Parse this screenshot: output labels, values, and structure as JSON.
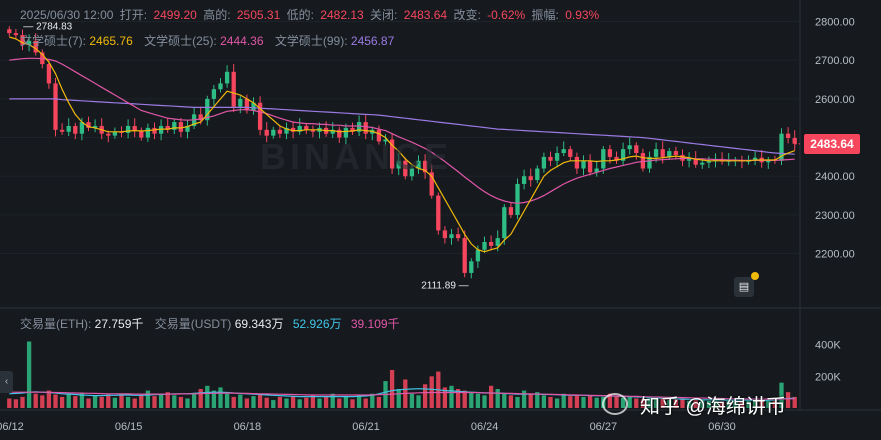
{
  "header": {
    "datetime": "2025/06/30 12:00",
    "open_label": "打开:",
    "open_value": "2499.20",
    "high_label": "高的:",
    "high_value": "2505.31",
    "low_label": "低的:",
    "low_value": "2482.13",
    "close_label": "关闭:",
    "close_value": "2483.64",
    "change_label": "改变:",
    "change_value": "-0.62%",
    "amplitude_label": "振幅:",
    "amplitude_value": "0.93%"
  },
  "ma": [
    {
      "label": "文学硕士(7):",
      "value": "2465.76",
      "color": "#f0b90b"
    },
    {
      "label": "文学硕士(25):",
      "value": "2444.36",
      "color": "#e056a8"
    },
    {
      "label": "文学硕士(99):",
      "value": "2456.87",
      "color": "#9c7ae5"
    }
  ],
  "volume_header": {
    "label1": "交易量(ETH):",
    "value1": "27.759千",
    "label2": "交易量(USDT)",
    "value2": "69.343万",
    "value3": "52.926万",
    "value4": "39.109千"
  },
  "current_price": "2483.64",
  "toggle_glyph": "‹",
  "note_glyph": "▤",
  "watermark_text": "知乎 @海绵讲币",
  "brand_watermark": "BINANCE",
  "colors": {
    "up": "#2ebd85",
    "down": "#f6465d",
    "ma7": "#f0b90b",
    "ma25": "#e056a8",
    "ma99": "#9c7ae5",
    "vol_ma1": "#41c6e8",
    "vol_ma2": "#e056a8"
  },
  "chart_data": {
    "type": "candlestick",
    "interval": "4h",
    "price_axis": {
      "ticks": [
        2200,
        2300,
        2400,
        2500,
        2600,
        2700,
        2800
      ],
      "tick_labels": [
        "2200.00",
        "2300.00",
        "2400.00",
        "2500.00",
        "2600.00",
        "2700.00",
        "2800.00"
      ],
      "range": [
        2080,
        2835
      ]
    },
    "volume_axis": {
      "ticks": [
        200,
        400
      ],
      "tick_labels": [
        "200K",
        "400K"
      ],
      "range": [
        0,
        480
      ],
      "unit": "K"
    },
    "date_ticks": [
      "06/12",
      "06/15",
      "06/18",
      "06/21",
      "06/24",
      "06/27",
      "06/30"
    ],
    "annotations": [
      {
        "label": "2784.83",
        "type": "max"
      },
      {
        "label": "2111.89",
        "type": "min"
      }
    ],
    "closes": [
      2770,
      2765,
      2740,
      2750,
      2720,
      2690,
      2640,
      2520,
      2515,
      2530,
      2510,
      2540,
      2525,
      2530,
      2510,
      2505,
      2515,
      2512,
      2530,
      2518,
      2500,
      2525,
      2510,
      2530,
      2520,
      2540,
      2515,
      2530,
      2560,
      2545,
      2600,
      2625,
      2640,
      2670,
      2580,
      2600,
      2570,
      2590,
      2520,
      2505,
      2520,
      2510,
      2525,
      2515,
      2530,
      2520,
      2515,
      2525,
      2510,
      2520,
      2500,
      2525,
      2515,
      2540,
      2510,
      2520,
      2490,
      2495,
      2420,
      2440,
      2400,
      2420,
      2440,
      2410,
      2350,
      2260,
      2240,
      2250,
      2240,
      2150,
      2180,
      2210,
      2230,
      2220,
      2240,
      2320,
      2300,
      2380,
      2400,
      2390,
      2420,
      2450,
      2440,
      2460,
      2470,
      2450,
      2420,
      2440,
      2410,
      2420,
      2470,
      2450,
      2440,
      2470,
      2480,
      2460,
      2420,
      2450,
      2470,
      2450,
      2465,
      2455,
      2440,
      2445,
      2430,
      2435,
      2440,
      2445,
      2438,
      2440,
      2442,
      2438,
      2440,
      2448,
      2436,
      2442,
      2440,
      2510,
      2499,
      2484
    ],
    "volumes_k": [
      60,
      55,
      70,
      420,
      90,
      80,
      110,
      85,
      70,
      90,
      75,
      95,
      60,
      80,
      70,
      85,
      65,
      90,
      70,
      60,
      80,
      110,
      75,
      90,
      100,
      80,
      70,
      60,
      95,
      120,
      140,
      110,
      130,
      90,
      70,
      85,
      60,
      75,
      90,
      65,
      50,
      70,
      60,
      75,
      55,
      65,
      80,
      60,
      70,
      90,
      60,
      75,
      55,
      80,
      60,
      90,
      70,
      170,
      240,
      120,
      180,
      90,
      80,
      150,
      200,
      230,
      130,
      140,
      120,
      110,
      100,
      90,
      80,
      140,
      120,
      90,
      80,
      70,
      110,
      90,
      100,
      80,
      70,
      60,
      90,
      75,
      85,
      70,
      80,
      65,
      70,
      90,
      75,
      65,
      70,
      60,
      55,
      70,
      65,
      60,
      50,
      55,
      60,
      45,
      50,
      55,
      45,
      50,
      40,
      45,
      50,
      40,
      45,
      55,
      50,
      45,
      60,
      160,
      100,
      70
    ],
    "ma7": [
      2760,
      2755,
      2745,
      2740,
      2730,
      2715,
      2695,
      2665,
      2625,
      2590,
      2560,
      2540,
      2528,
      2525,
      2520,
      2515,
      2515,
      2515,
      2517,
      2518,
      2517,
      2518,
      2520,
      2522,
      2522,
      2525,
      2525,
      2528,
      2535,
      2540,
      2560,
      2580,
      2600,
      2620,
      2615,
      2610,
      2600,
      2590,
      2575,
      2560,
      2545,
      2530,
      2522,
      2518,
      2518,
      2520,
      2520,
      2520,
      2518,
      2518,
      2515,
      2516,
      2517,
      2520,
      2518,
      2516,
      2510,
      2500,
      2480,
      2465,
      2445,
      2430,
      2420,
      2415,
      2400,
      2370,
      2340,
      2310,
      2280,
      2250,
      2225,
      2210,
      2205,
      2210,
      2215,
      2235,
      2250,
      2280,
      2310,
      2340,
      2370,
      2400,
      2415,
      2425,
      2435,
      2440,
      2440,
      2440,
      2440,
      2438,
      2440,
      2440,
      2442,
      2445,
      2450,
      2452,
      2448,
      2446,
      2446,
      2448,
      2450,
      2452,
      2450,
      2448,
      2444,
      2442,
      2440,
      2440,
      2440,
      2440,
      2440,
      2440,
      2440,
      2442,
      2442,
      2442,
      2442,
      2452,
      2460,
      2466
    ],
    "ma25": [
      2700,
      2702,
      2704,
      2705,
      2705,
      2704,
      2702,
      2698,
      2690,
      2680,
      2670,
      2660,
      2650,
      2640,
      2630,
      2620,
      2610,
      2600,
      2590,
      2580,
      2570,
      2565,
      2560,
      2555,
      2550,
      2548,
      2546,
      2545,
      2546,
      2548,
      2552,
      2556,
      2562,
      2568,
      2570,
      2572,
      2572,
      2570,
      2566,
      2562,
      2556,
      2550,
      2545,
      2540,
      2538,
      2536,
      2536,
      2534,
      2534,
      2532,
      2532,
      2530,
      2530,
      2530,
      2528,
      2526,
      2522,
      2518,
      2510,
      2502,
      2495,
      2488,
      2480,
      2472,
      2462,
      2450,
      2438,
      2425,
      2412,
      2398,
      2385,
      2372,
      2360,
      2350,
      2342,
      2336,
      2332,
      2330,
      2332,
      2336,
      2342,
      2350,
      2360,
      2370,
      2380,
      2388,
      2395,
      2400,
      2405,
      2410,
      2415,
      2420,
      2424,
      2428,
      2432,
      2436,
      2438,
      2440,
      2442,
      2443,
      2444,
      2445,
      2446,
      2446,
      2445,
      2445,
      2444,
      2443,
      2443,
      2442,
      2442,
      2441,
      2441,
      2441,
      2441,
      2441,
      2441,
      2442,
      2443,
      2444
    ],
    "ma99": [
      2600,
      2600,
      2600,
      2600,
      2600,
      2600,
      2600,
      2600,
      2598,
      2597,
      2596,
      2595,
      2594,
      2593,
      2592,
      2591,
      2590,
      2589,
      2588,
      2587,
      2586,
      2585,
      2584,
      2583,
      2582,
      2581,
      2580,
      2579,
      2578,
      2578,
      2578,
      2578,
      2578,
      2578,
      2578,
      2578,
      2578,
      2577,
      2576,
      2575,
      2574,
      2573,
      2572,
      2571,
      2570,
      2569,
      2568,
      2567,
      2566,
      2565,
      2564,
      2563,
      2562,
      2561,
      2560,
      2559,
      2558,
      2556,
      2554,
      2552,
      2550,
      2548,
      2546,
      2544,
      2542,
      2540,
      2538,
      2536,
      2534,
      2532,
      2530,
      2528,
      2526,
      2524,
      2522,
      2521,
      2520,
      2519,
      2518,
      2517,
      2516,
      2515,
      2514,
      2513,
      2512,
      2511,
      2510,
      2509,
      2508,
      2507,
      2506,
      2505,
      2504,
      2503,
      2502,
      2501,
      2500,
      2498,
      2496,
      2494,
      2492,
      2490,
      2488,
      2486,
      2484,
      2482,
      2480,
      2478,
      2476,
      2474,
      2472,
      2470,
      2468,
      2466,
      2464,
      2462,
      2460,
      2459,
      2458,
      2457
    ],
    "vol_ma_a": [
      90,
      92,
      95,
      100,
      102,
      100,
      98,
      95,
      90,
      88,
      85,
      82,
      80,
      78,
      78,
      80,
      80,
      82,
      82,
      80,
      80,
      82,
      84,
      86,
      88,
      90,
      90,
      90,
      92,
      95,
      98,
      100,
      100,
      98,
      95,
      92,
      90,
      88,
      85,
      82,
      80,
      78,
      76,
      74,
      72,
      72,
      72,
      72,
      72,
      72,
      72,
      72,
      72,
      74,
      76,
      80,
      90,
      100,
      110,
      115,
      118,
      120,
      122,
      120,
      118,
      115,
      110,
      108,
      105,
      102,
      100,
      98,
      95,
      95,
      94,
      92,
      90,
      88,
      88,
      88,
      88,
      86,
      85,
      84,
      82,
      80,
      80,
      80,
      78,
      78,
      78,
      76,
      75,
      74,
      72,
      70,
      68,
      66,
      64,
      62,
      60,
      58,
      56,
      55,
      54,
      52,
      52,
      51,
      50,
      50,
      50,
      50,
      49,
      49,
      48,
      48,
      50,
      56,
      60,
      62
    ],
    "vol_ma_b": [
      100,
      100,
      100,
      100,
      100,
      100,
      99,
      98,
      97,
      96,
      95,
      94,
      93,
      92,
      91,
      90,
      90,
      90,
      89,
      88,
      88,
      88,
      88,
      88,
      88,
      88,
      89,
      90,
      90,
      91,
      92,
      93,
      94,
      94,
      94,
      93,
      92,
      91,
      90,
      89,
      88,
      87,
      86,
      85,
      84,
      83,
      82,
      82,
      82,
      82,
      82,
      82,
      82,
      82,
      82,
      83,
      84,
      86,
      88,
      90,
      92,
      94,
      96,
      97,
      98,
      98,
      98,
      98,
      98,
      98,
      98,
      97,
      96,
      95,
      94,
      93,
      92,
      91,
      90,
      89,
      88,
      87,
      86,
      85,
      84,
      83,
      82,
      81,
      80,
      79,
      78,
      77,
      76,
      75,
      74,
      73,
      72,
      71,
      70,
      69,
      68,
      67,
      66,
      65,
      64,
      63,
      62,
      61,
      60,
      59,
      58,
      58,
      57,
      57,
      56,
      56,
      56,
      57,
      58,
      58
    ]
  }
}
